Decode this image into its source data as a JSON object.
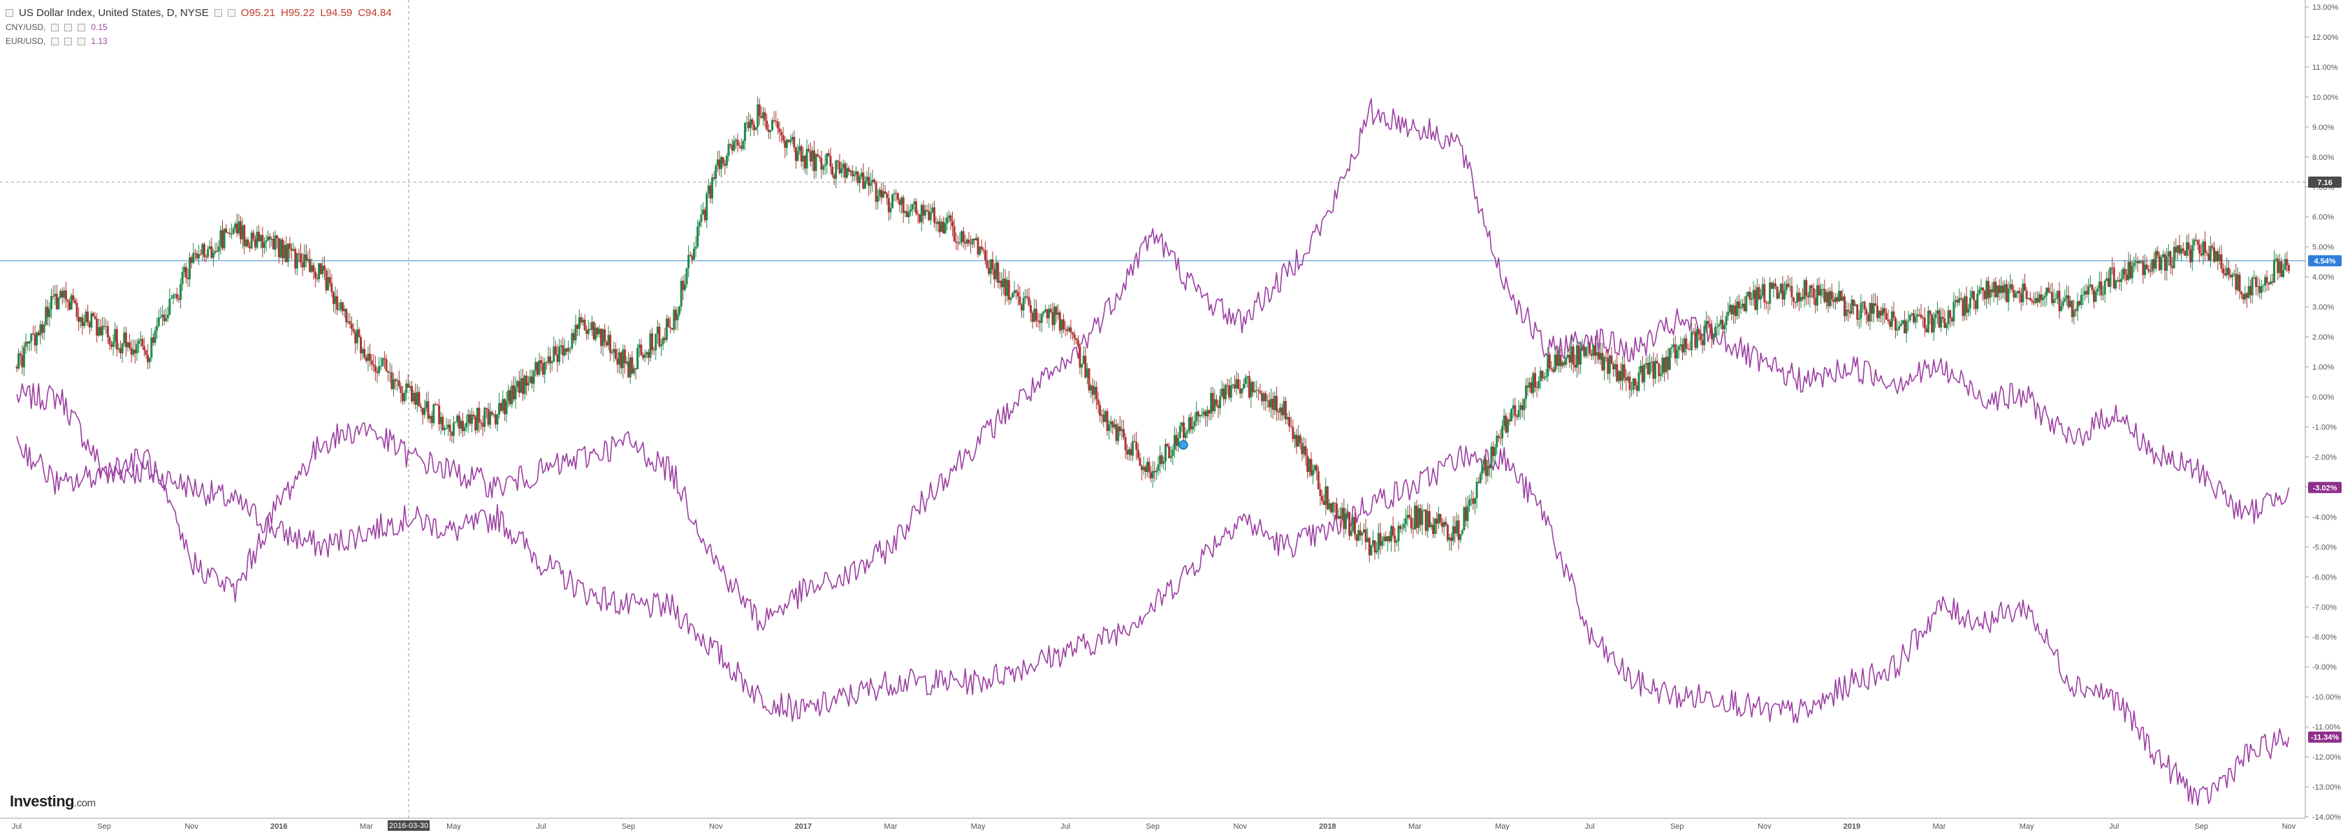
{
  "header": {
    "title": "US Dollar Index, United States, D, NYSE",
    "ohlc": {
      "open": "O95.21",
      "high": "H95.22",
      "low": "L94.59",
      "close": "C94.84"
    }
  },
  "comparisons": [
    {
      "label": "CNY/USD,",
      "value": "0.15"
    },
    {
      "label": "EUR/USD,",
      "value": "1.13"
    }
  ],
  "logo": {
    "brand": "Investing",
    "suffix": ".com"
  },
  "colors": {
    "up": "#1f8a4c",
    "down": "#b03434",
    "compare": "#9c3fa2",
    "price_line": "#7aaed8",
    "badge_blue": "#2f7ed8",
    "badge_purple": "#8e2e8a"
  },
  "chart_data": {
    "type": "line",
    "x_range": [
      "2015-07",
      "2019-11"
    ],
    "x_tick_labels": [
      "Jul",
      "Sep",
      "Nov",
      "2016",
      "Mar",
      "2016-03-30",
      "May",
      "Jul",
      "Sep",
      "Nov",
      "2017",
      "Mar",
      "May",
      "Jul",
      "Sep",
      "Nov",
      "2018",
      "Mar",
      "May",
      "Jul",
      "Sep",
      "Nov",
      "2019",
      "Mar",
      "May",
      "Jul",
      "Sep",
      "Nov"
    ],
    "highlighted_x_label": "2016-03-30",
    "y_unit": "%",
    "ylim": [
      -14,
      13
    ],
    "y_tick_labels": [
      "13.00%",
      "12.00%",
      "11.00%",
      "10.00%",
      "9.00%",
      "8.00%",
      "7.00%",
      "6.00%",
      "5.00%",
      "4.00%",
      "3.00%",
      "2.00%",
      "1.00%",
      "0.00%",
      "-1.00%",
      "-2.00%",
      "-3.00%",
      "-4.00%",
      "-5.00%",
      "-6.00%",
      "-7.00%",
      "-8.00%",
      "-9.00%",
      "-10.00%",
      "-11.00%",
      "-12.00%",
      "-13.00%",
      "-14.00%"
    ],
    "badges": [
      {
        "label": "7.16",
        "y": 7.16,
        "style": "dark"
      },
      {
        "label": "4.54%",
        "y": 4.54,
        "style": "blue"
      },
      {
        "label": "-3.02%",
        "y": -3.02,
        "style": "purple"
      },
      {
        "label": "-11.34%",
        "y": -11.34,
        "style": "purple"
      }
    ],
    "price_line_y": 4.54,
    "crosshair_y": 7.16,
    "series": [
      {
        "style": "candlestick",
        "x": [
          "2015-07",
          "2015-08",
          "2015-09",
          "2015-10",
          "2015-11",
          "2015-12",
          "2016-01",
          "2016-02",
          "2016-03",
          "2016-04",
          "2016-05",
          "2016-06",
          "2016-07",
          "2016-08",
          "2016-09",
          "2016-10",
          "2016-11",
          "2016-12",
          "2017-01",
          "2017-02",
          "2017-03",
          "2017-04",
          "2017-05",
          "2017-06",
          "2017-07",
          "2017-08",
          "2017-09",
          "2017-10",
          "2017-11",
          "2017-12",
          "2018-01",
          "2018-02",
          "2018-03",
          "2018-04",
          "2018-05",
          "2018-06",
          "2018-07",
          "2018-08",
          "2018-09",
          "2018-10",
          "2018-11",
          "2018-12",
          "2019-01",
          "2019-02",
          "2019-03",
          "2019-04",
          "2019-05",
          "2019-06",
          "2019-07",
          "2019-08",
          "2019-09",
          "2019-10",
          "2019-11"
        ],
        "values": [
          1.0,
          3.5,
          2.0,
          1.5,
          4.5,
          5.5,
          5.0,
          4.0,
          1.5,
          0.0,
          -1.0,
          -0.5,
          1.0,
          2.5,
          1.0,
          2.5,
          7.5,
          9.5,
          8.0,
          7.5,
          6.5,
          6.0,
          5.0,
          3.0,
          2.5,
          -1.0,
          -2.5,
          -0.5,
          0.5,
          -0.5,
          -3.5,
          -5.0,
          -4.0,
          -4.5,
          -1.0,
          1.0,
          1.5,
          0.5,
          1.5,
          2.5,
          3.5,
          3.5,
          3.0,
          2.5,
          2.5,
          3.5,
          3.5,
          3.0,
          4.0,
          4.5,
          5.0,
          3.5,
          4.54
        ]
      },
      {
        "label": "CNY/USD",
        "x": [
          "2015-07",
          "2015-08",
          "2015-09",
          "2015-10",
          "2015-11",
          "2015-12",
          "2016-01",
          "2016-02",
          "2016-03",
          "2016-04",
          "2016-05",
          "2016-06",
          "2016-07",
          "2016-08",
          "2016-09",
          "2016-10",
          "2016-11",
          "2016-12",
          "2017-01",
          "2017-02",
          "2017-03",
          "2017-04",
          "2017-05",
          "2017-06",
          "2017-07",
          "2017-08",
          "2017-09",
          "2017-10",
          "2017-11",
          "2017-12",
          "2018-01",
          "2018-02",
          "2018-03",
          "2018-04",
          "2018-05",
          "2018-06",
          "2018-07",
          "2018-08",
          "2018-09",
          "2018-10",
          "2018-11",
          "2018-12",
          "2019-01",
          "2019-02",
          "2019-03",
          "2019-04",
          "2019-05",
          "2019-06",
          "2019-07",
          "2019-08",
          "2019-09",
          "2019-10",
          "2019-11"
        ],
        "values": [
          0.0,
          0.0,
          -2.5,
          -2.5,
          -3.0,
          -3.5,
          -4.5,
          -5.0,
          -4.5,
          -4.0,
          -4.5,
          -4.0,
          -5.5,
          -6.5,
          -7.0,
          -7.0,
          -8.5,
          -10.0,
          -10.5,
          -10.0,
          -9.5,
          -9.5,
          -9.5,
          -9.0,
          -8.5,
          -8.0,
          -7.0,
          -5.5,
          -4.0,
          -5.0,
          -4.5,
          -3.5,
          -3.0,
          -2.0,
          -2.0,
          -4.0,
          -8.0,
          -9.5,
          -10.0,
          -10.0,
          -10.5,
          -10.5,
          -9.5,
          -9.0,
          -7.0,
          -7.5,
          -7.0,
          -9.5,
          -10.0,
          -12.0,
          -13.5,
          -12.0,
          -11.34
        ]
      },
      {
        "label": "EUR/USD",
        "x": [
          "2015-07",
          "2015-08",
          "2015-09",
          "2015-10",
          "2015-11",
          "2015-12",
          "2016-01",
          "2016-02",
          "2016-03",
          "2016-04",
          "2016-05",
          "2016-06",
          "2016-07",
          "2016-08",
          "2016-09",
          "2016-10",
          "2016-11",
          "2016-12",
          "2017-01",
          "2017-02",
          "2017-03",
          "2017-04",
          "2017-05",
          "2017-06",
          "2017-07",
          "2017-08",
          "2017-09",
          "2017-10",
          "2017-11",
          "2017-12",
          "2018-01",
          "2018-02",
          "2018-03",
          "2018-04",
          "2018-05",
          "2018-06",
          "2018-07",
          "2018-08",
          "2018-09",
          "2018-10",
          "2018-11",
          "2018-12",
          "2019-01",
          "2019-02",
          "2019-03",
          "2019-04",
          "2019-05",
          "2019-06",
          "2019-07",
          "2019-08",
          "2019-09",
          "2019-10",
          "2019-11"
        ],
        "values": [
          -1.5,
          -3.0,
          -2.5,
          -2.0,
          -5.5,
          -6.5,
          -3.5,
          -1.5,
          -1.0,
          -2.0,
          -2.5,
          -3.0,
          -2.5,
          -2.0,
          -1.5,
          -2.5,
          -5.5,
          -7.5,
          -6.5,
          -6.0,
          -5.0,
          -3.0,
          -1.5,
          0.0,
          1.0,
          3.0,
          5.5,
          3.5,
          2.5,
          4.0,
          6.0,
          9.5,
          9.0,
          8.5,
          4.0,
          1.5,
          2.0,
          1.5,
          2.5,
          2.0,
          1.0,
          0.5,
          1.0,
          0.5,
          1.0,
          0.0,
          0.0,
          -1.5,
          -0.5,
          -2.0,
          -2.5,
          -4.0,
          -3.02
        ]
      }
    ]
  }
}
